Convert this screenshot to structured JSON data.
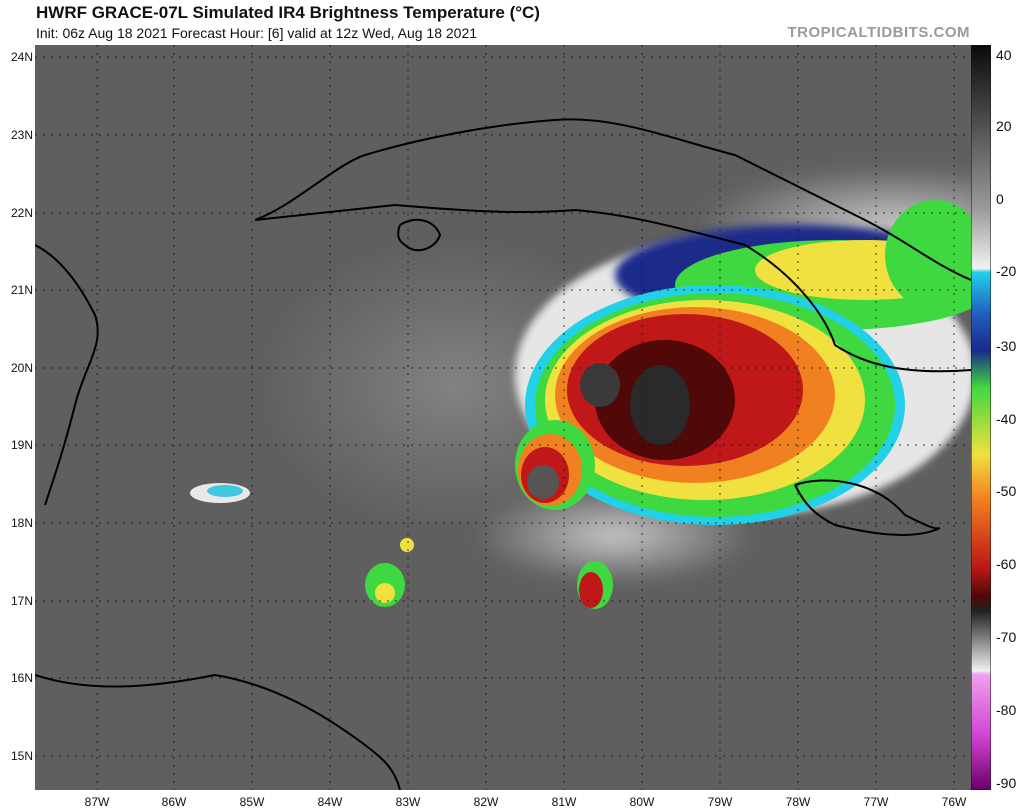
{
  "header": {
    "title": "HWRF GRACE-07L Simulated IR4 Brightness Temperature (°C)",
    "subtitle": "Init: 06z Aug 18 2021   Forecast Hour: [6]   valid at 12z Wed, Aug 18 2021",
    "brand": "TROPICALTIDBITS.COM"
  },
  "map": {
    "lat_labels": [
      "24N",
      "23N",
      "22N",
      "21N",
      "20N",
      "19N",
      "18N",
      "17N",
      "16N",
      "15N"
    ],
    "lon_labels": [
      "87W",
      "86W",
      "85W",
      "84W",
      "83W",
      "82W",
      "81W",
      "80W",
      "79W",
      "78W",
      "77W",
      "76W"
    ],
    "lat_range": [
      14.6,
      24.2
    ],
    "lon_range": [
      -87.8,
      -75.8
    ]
  },
  "colorbar": {
    "unit": "°C",
    "labels": [
      "40",
      "20",
      "0",
      "-20",
      "-30",
      "-40",
      "-50",
      "-60",
      "-70",
      "-80",
      "-90"
    ],
    "range": [
      -90,
      40
    ],
    "colors": {
      "warm_black": "#111111",
      "gray_light": "#f2f2f2",
      "cyan": "#22d0e8",
      "blue": "#1a2a8a",
      "green": "#40d840",
      "yellow": "#f0e040",
      "orange": "#f08020",
      "red": "#c01818",
      "dark_red": "#500808",
      "magenta": "#d040d0",
      "purple": "#6a006a"
    }
  }
}
